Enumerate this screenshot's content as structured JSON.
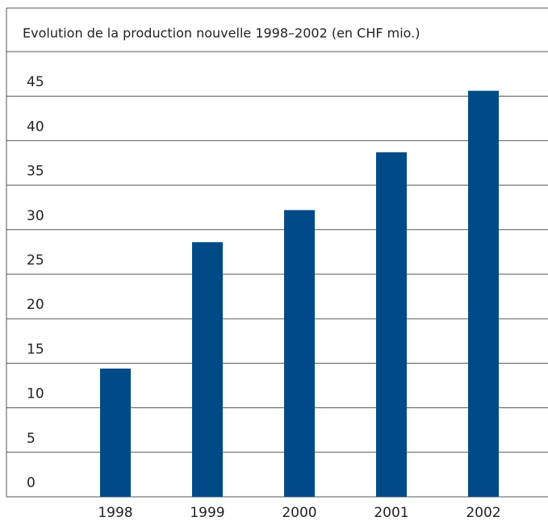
{
  "chart_data": {
    "type": "bar",
    "title": "Evolution de la production nouvelle 1998–2002 (en CHF mio.)",
    "categories": [
      "1998",
      "1999",
      "2000",
      "2001",
      "2002"
    ],
    "values": [
      14.4,
      28.6,
      32.2,
      38.7,
      45.6
    ],
    "color": "#004a87",
    "ylim": [
      0,
      50
    ],
    "yticks": [
      0,
      5,
      10,
      15,
      20,
      25,
      30,
      35,
      40,
      45
    ],
    "grid": true
  }
}
